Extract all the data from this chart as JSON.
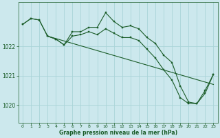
{
  "background_color": "#cce8ed",
  "grid_color": "#aad4d8",
  "line_color": "#1a5c28",
  "xlabel": "Graphe pression niveau de la mer (hPa)",
  "xlim": [
    -0.5,
    23.5
  ],
  "ylim": [
    1019.4,
    1023.5
  ],
  "yticks": [
    1020,
    1021,
    1022
  ],
  "xticks": [
    0,
    1,
    2,
    3,
    4,
    5,
    6,
    7,
    8,
    9,
    10,
    11,
    12,
    13,
    14,
    15,
    16,
    17,
    18,
    19,
    20,
    21,
    22,
    23
  ],
  "series1_x": [
    0,
    1,
    2,
    3,
    4,
    5,
    6,
    7,
    8,
    9,
    10,
    11,
    12,
    13,
    14,
    15,
    16,
    17,
    18,
    19,
    20,
    21,
    22,
    23
  ],
  "series1_y": [
    1022.75,
    1022.95,
    1022.9,
    1022.35,
    1022.25,
    1022.05,
    1022.5,
    1022.5,
    1022.65,
    1022.65,
    1023.15,
    1022.85,
    1022.65,
    1022.7,
    1022.6,
    1022.3,
    1022.1,
    1021.7,
    1021.45,
    1020.65,
    1020.1,
    1020.05,
    1020.5,
    1021.05
  ],
  "series2_x": [
    0,
    1,
    2,
    3,
    4,
    5,
    6,
    7,
    8,
    9,
    10,
    11,
    12,
    13,
    14,
    15,
    16,
    17,
    18,
    19,
    20,
    21,
    22,
    23
  ],
  "series2_y": [
    1022.75,
    1022.95,
    1022.9,
    1022.35,
    1022.25,
    1022.05,
    1022.35,
    1022.4,
    1022.5,
    1022.4,
    1022.6,
    1022.45,
    1022.3,
    1022.3,
    1022.2,
    1021.9,
    1021.6,
    1021.2,
    1020.85,
    1020.25,
    1020.05,
    1020.05,
    1020.4,
    1021.05
  ],
  "series3_x": [
    3,
    23
  ],
  "series3_y": [
    1022.35,
    1020.7
  ],
  "xlabel_fontsize": 5.5,
  "xtick_fontsize": 4.5,
  "ytick_fontsize": 5.5,
  "linewidth": 0.8,
  "markersize": 2.0
}
